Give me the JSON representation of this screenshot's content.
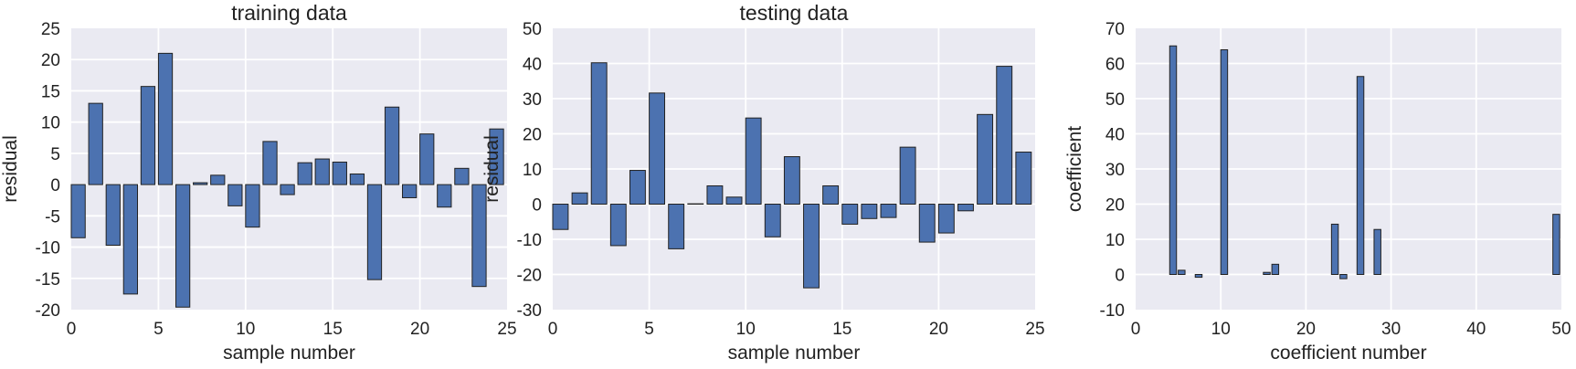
{
  "chart_data": [
    {
      "type": "bar",
      "title": "training data",
      "xlabel": "sample number",
      "ylabel": "residual",
      "xlim": [
        0,
        25
      ],
      "ylim": [
        -20,
        25
      ],
      "xticks": [
        0,
        5,
        10,
        15,
        20,
        25
      ],
      "yticks": [
        -20,
        -15,
        -10,
        -5,
        0,
        5,
        10,
        15,
        20,
        25
      ],
      "grid": true,
      "bar_color": "#4c72b0",
      "bar_width": 0.8,
      "x": [
        0,
        1,
        2,
        3,
        4,
        5,
        6,
        7,
        8,
        9,
        10,
        11,
        12,
        13,
        14,
        15,
        16,
        17,
        18,
        19,
        20,
        21,
        22,
        23,
        24
      ],
      "values": [
        -8.5,
        13,
        -9.7,
        -17.5,
        15.7,
        21,
        -19.6,
        0.3,
        1.5,
        -3.4,
        -6.8,
        6.9,
        -1.6,
        3.5,
        4.1,
        3.6,
        1.7,
        -15.2,
        12.4,
        -2.1,
        8.1,
        -3.6,
        2.6,
        -16.3,
        8.9
      ]
    },
    {
      "type": "bar",
      "title": "testing data",
      "xlabel": "sample number",
      "ylabel": "residual",
      "xlim": [
        0,
        25
      ],
      "ylim": [
        -30,
        50
      ],
      "xticks": [
        0,
        5,
        10,
        15,
        20,
        25
      ],
      "yticks": [
        -30,
        -20,
        -10,
        0,
        10,
        20,
        30,
        40,
        50
      ],
      "grid": true,
      "bar_color": "#4c72b0",
      "bar_width": 0.8,
      "x": [
        0,
        1,
        2,
        3,
        4,
        5,
        6,
        7,
        8,
        9,
        10,
        11,
        12,
        13,
        14,
        15,
        16,
        17,
        18,
        19,
        20,
        21,
        22,
        23,
        24
      ],
      "values": [
        -7.2,
        3.2,
        40.2,
        -11.8,
        9.6,
        31.6,
        -12.7,
        0.1,
        5.2,
        2,
        24.5,
        -9.3,
        13.5,
        -23.8,
        5.2,
        -5.7,
        -4.1,
        -3.8,
        16.2,
        -10.8,
        -8.2,
        -1.9,
        25.5,
        39.2,
        14.8
      ]
    },
    {
      "type": "bar",
      "title": "",
      "xlabel": "coefficient number",
      "ylabel": "coefficient",
      "xlim": [
        0,
        50
      ],
      "ylim": [
        -10,
        70
      ],
      "xticks": [
        0,
        10,
        20,
        30,
        40,
        50
      ],
      "yticks": [
        -10,
        0,
        10,
        20,
        30,
        40,
        50,
        60,
        70
      ],
      "grid": true,
      "bar_color": "#4c72b0",
      "bar_width": 0.8,
      "x": [
        0,
        1,
        2,
        3,
        4,
        5,
        6,
        7,
        8,
        9,
        10,
        11,
        12,
        13,
        14,
        15,
        16,
        17,
        18,
        19,
        20,
        21,
        22,
        23,
        24,
        25,
        26,
        27,
        28,
        29,
        30,
        31,
        32,
        33,
        34,
        35,
        36,
        37,
        38,
        39,
        40,
        41,
        42,
        43,
        44,
        45,
        46,
        47,
        48,
        49
      ],
      "values": [
        0,
        0,
        0,
        0,
        65,
        1.2,
        0,
        -0.8,
        0,
        0,
        63.9,
        0,
        0,
        0,
        0,
        0.6,
        2.9,
        0,
        0,
        0,
        0,
        0,
        0,
        14.3,
        -1.2,
        0,
        56.3,
        0,
        12.8,
        0,
        0,
        0,
        0,
        0,
        0,
        0,
        0,
        0,
        0,
        0,
        0,
        0,
        0,
        0,
        0,
        0,
        0,
        0,
        0,
        17.1
      ]
    }
  ]
}
